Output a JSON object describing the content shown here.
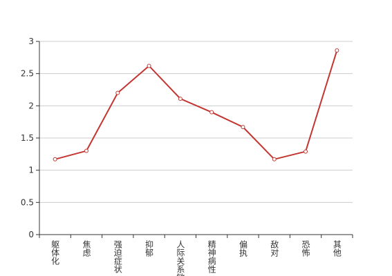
{
  "chart_data": {
    "type": "line",
    "categories": [
      "躯体化",
      "焦虑",
      "强迫症状",
      "抑郁",
      "人际关系敏感",
      "精神病性",
      "偏执",
      "敌对",
      "恐怖",
      "其他"
    ],
    "series": [
      {
        "color": "#c23531",
        "values": [
          1.17,
          1.3,
          2.2,
          2.62,
          2.11,
          1.9,
          1.67,
          1.17,
          1.29,
          2.86
        ]
      }
    ],
    "ylim": [
      0,
      3
    ],
    "yticks": [
      0,
      0.5,
      1,
      1.5,
      2,
      2.5,
      3
    ],
    "grid": true
  }
}
